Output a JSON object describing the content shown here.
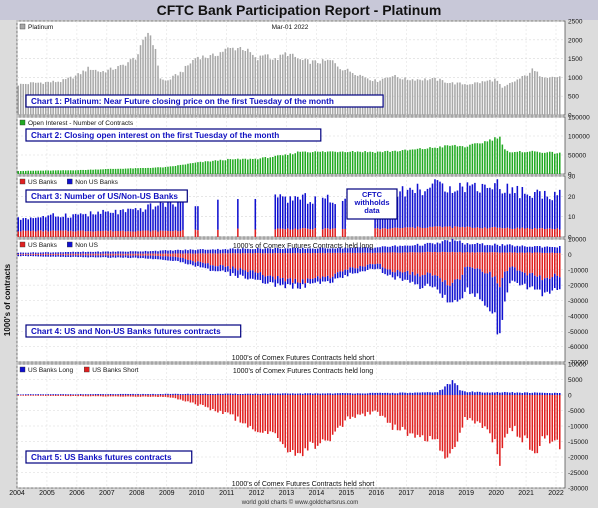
{
  "title": "CFTC Bank Participation Report - Platinum",
  "ylabel": "1000's of contracts",
  "footer": "world gold charts © www.goldchartsrus.com",
  "years": [
    "2004",
    "2005",
    "2006",
    "2007",
    "2008",
    "2009",
    "2010",
    "2011",
    "2012",
    "2013",
    "2014",
    "2015",
    "2016",
    "2017",
    "2018",
    "2019",
    "2020",
    "2021",
    "2022"
  ],
  "colors": {
    "price": "#a8a8a8",
    "oi": "#22aa22",
    "us": "#e02020",
    "nonus": "#1010d0",
    "box_border": "#000080",
    "box_text": "#1010c0"
  },
  "chart_data": [
    {
      "type": "bar",
      "panel": "chart1",
      "box_label": "Chart 1: Platinum: Near Future closing price on the first Tuesday of the month",
      "legend": [
        {
          "name": "Platinum",
          "color": "#a8a8a8"
        }
      ],
      "date_label": "Mar-01  2022",
      "ylim": [
        0,
        2500
      ],
      "yticks": [
        0,
        500,
        1000,
        1500,
        2000,
        2500
      ],
      "series": [
        {
          "name": "Platinum",
          "anchors": [
            [
              2004.0,
              800
            ],
            [
              2004.5,
              850
            ],
            [
              2005.0,
              870
            ],
            [
              2005.5,
              900
            ],
            [
              2006.0,
              1050
            ],
            [
              2006.4,
              1250
            ],
            [
              2006.8,
              1150
            ],
            [
              2007.0,
              1180
            ],
            [
              2007.5,
              1300
            ],
            [
              2008.0,
              1550
            ],
            [
              2008.3,
              2100
            ],
            [
              2008.4,
              2250
            ],
            [
              2008.6,
              1800
            ],
            [
              2008.8,
              950
            ],
            [
              2009.0,
              900
            ],
            [
              2009.5,
              1150
            ],
            [
              2010.0,
              1550
            ],
            [
              2010.5,
              1550
            ],
            [
              2011.0,
              1750
            ],
            [
              2011.5,
              1800
            ],
            [
              2011.8,
              1650
            ],
            [
              2012.0,
              1450
            ],
            [
              2012.3,
              1650
            ],
            [
              2012.6,
              1450
            ],
            [
              2013.0,
              1650
            ],
            [
              2013.5,
              1450
            ],
            [
              2014.0,
              1400
            ],
            [
              2014.5,
              1450
            ],
            [
              2014.8,
              1250
            ],
            [
              2015.0,
              1200
            ],
            [
              2015.5,
              1050
            ],
            [
              2016.0,
              900
            ],
            [
              2016.5,
              1050
            ],
            [
              2017.0,
              950
            ],
            [
              2017.5,
              950
            ],
            [
              2018.0,
              950
            ],
            [
              2018.5,
              850
            ],
            [
              2019.0,
              820
            ],
            [
              2019.5,
              870
            ],
            [
              2020.0,
              950
            ],
            [
              2020.2,
              700
            ],
            [
              2020.5,
              850
            ],
            [
              2021.0,
              1050
            ],
            [
              2021.2,
              1200
            ],
            [
              2021.5,
              1050
            ],
            [
              2022.0,
              1000
            ],
            [
              2022.17,
              1050
            ]
          ]
        }
      ]
    },
    {
      "type": "bar",
      "panel": "chart2",
      "box_label": "Chart 2: Closing open interest on the first Tuesday of the month",
      "legend": [
        {
          "name": "Open Interest - Number of Contracts",
          "color": "#22aa22"
        }
      ],
      "ylim": [
        0,
        150000
      ],
      "yticks": [
        0,
        50000,
        100000,
        150000
      ],
      "series": [
        {
          "name": "Open Interest - Number of Contracts",
          "anchors": [
            [
              2004.0,
              8000
            ],
            [
              2006.0,
              10000
            ],
            [
              2007.0,
              13000
            ],
            [
              2008.0,
              15000
            ],
            [
              2009.0,
              18000
            ],
            [
              2010.0,
              30000
            ],
            [
              2011.0,
              38000
            ],
            [
              2012.0,
              40000
            ],
            [
              2013.0,
              50000
            ],
            [
              2013.5,
              60000
            ],
            [
              2014.0,
              58000
            ],
            [
              2015.0,
              60000
            ],
            [
              2016.0,
              58000
            ],
            [
              2017.0,
              62000
            ],
            [
              2018.0,
              70000
            ],
            [
              2018.5,
              75000
            ],
            [
              2019.0,
              72000
            ],
            [
              2019.5,
              82000
            ],
            [
              2020.0,
              95000
            ],
            [
              2020.1,
              100000
            ],
            [
              2020.3,
              65000
            ],
            [
              2020.5,
              55000
            ],
            [
              2021.0,
              60000
            ],
            [
              2021.5,
              58000
            ],
            [
              2022.0,
              55000
            ],
            [
              2022.17,
              58000
            ]
          ]
        }
      ]
    },
    {
      "type": "bar",
      "panel": "chart3",
      "box_label": "Chart 3: Number of US/Non-US Banks",
      "note": [
        "CFTC",
        "withholds",
        "data"
      ],
      "legend": [
        {
          "name": "US Banks",
          "color": "#e02020"
        },
        {
          "name": "Non US Banks",
          "color": "#1010d0"
        }
      ],
      "ylim": [
        0,
        30
      ],
      "yticks": [
        0,
        10,
        20,
        30
      ],
      "series": [
        {
          "name": "US Banks",
          "anchors": [
            [
              2004.0,
              3
            ],
            [
              2009.0,
              3
            ],
            [
              2012.0,
              4
            ],
            [
              2016.0,
              4
            ],
            [
              2018.0,
              5
            ],
            [
              2022.17,
              4
            ]
          ]
        },
        {
          "name": "Non US Banks",
          "anchors": [
            [
              2004.0,
              6
            ],
            [
              2006.0,
              8
            ],
            [
              2008.0,
              10
            ],
            [
              2009.0,
              14
            ],
            [
              2012.0,
              14
            ],
            [
              2013.0,
              15
            ],
            [
              2015.0,
              14
            ],
            [
              2016.0,
              16
            ],
            [
              2017.0,
              18
            ],
            [
              2018.0,
              20
            ],
            [
              2019.0,
              20
            ],
            [
              2020.0,
              21
            ],
            [
              2021.0,
              17
            ],
            [
              2022.17,
              17
            ]
          ]
        }
      ],
      "gaps": [
        [
          2009.55,
          2009.95
        ],
        [
          2010.05,
          2010.65
        ],
        [
          2010.75,
          2011.3
        ],
        [
          2011.4,
          2011.9
        ],
        [
          2012.0,
          2012.6
        ],
        [
          2014.0,
          2014.2
        ],
        [
          2014.65,
          2014.8
        ],
        [
          2015.0,
          2015.9
        ]
      ]
    },
    {
      "type": "bar",
      "panel": "chart4",
      "box_label": "Chart 4: US and Non-US Banks futures contracts",
      "legend": [
        {
          "name": "US Banks",
          "color": "#e02020"
        },
        {
          "name": "Non US",
          "color": "#1010d0"
        }
      ],
      "top_label": "1000's of Comex Futures Contracts held long",
      "bottom_label": "1000's of Comex Futures Contracts held short",
      "ylim": [
        -70000,
        10000
      ],
      "yticks": [
        -70000,
        -60000,
        -50000,
        -40000,
        -30000,
        -20000,
        -10000,
        0,
        10000
      ],
      "series": [
        {
          "name": "US long",
          "anchors": [
            [
              2004.0,
              300
            ],
            [
              2009.0,
              500
            ],
            [
              2012.0,
              800
            ],
            [
              2016.0,
              1000
            ],
            [
              2018.0,
              1500
            ],
            [
              2022.17,
              1000
            ]
          ]
        },
        {
          "name": "Non US long",
          "anchors": [
            [
              2004.0,
              800
            ],
            [
              2008.0,
              1500
            ],
            [
              2009.0,
              2000
            ],
            [
              2010.0,
              2500
            ],
            [
              2012.0,
              3000
            ],
            [
              2014.0,
              3000
            ],
            [
              2016.0,
              3500
            ],
            [
              2017.0,
              4500
            ],
            [
              2018.0,
              5500
            ],
            [
              2018.5,
              8000
            ],
            [
              2019.0,
              5500
            ],
            [
              2020.0,
              5000
            ],
            [
              2021.0,
              4000
            ],
            [
              2022.17,
              4000
            ]
          ]
        },
        {
          "name": "US short",
          "anchors": [
            [
              2004.0,
              -300
            ],
            [
              2008.5,
              -800
            ],
            [
              2009.5,
              -2000
            ],
            [
              2010.0,
              -5000
            ],
            [
              2011.0,
              -8000
            ],
            [
              2012.0,
              -12000
            ],
            [
              2012.5,
              -14000
            ],
            [
              2013.0,
              -17000
            ],
            [
              2013.5,
              -18000
            ],
            [
              2014.0,
              -16000
            ],
            [
              2014.5,
              -14000
            ],
            [
              2015.0,
              -10000
            ],
            [
              2016.0,
              -6000
            ],
            [
              2016.5,
              -10000
            ],
            [
              2017.0,
              -12000
            ],
            [
              2018.0,
              -14000
            ],
            [
              2018.5,
              -20000
            ],
            [
              2018.8,
              -15000
            ],
            [
              2019.0,
              -8000
            ],
            [
              2019.5,
              -10000
            ],
            [
              2020.0,
              -15000
            ],
            [
              2020.1,
              -24000
            ],
            [
              2020.3,
              -12000
            ],
            [
              2020.5,
              -8000
            ],
            [
              2021.0,
              -12000
            ],
            [
              2021.5,
              -15000
            ],
            [
              2022.0,
              -14000
            ],
            [
              2022.17,
              -13000
            ]
          ]
        },
        {
          "name": "Non US short",
          "anchors": [
            [
              2004.0,
              -800
            ],
            [
              2008.0,
              -1500
            ],
            [
              2009.0,
              -2500
            ],
            [
              2010.0,
              -3000
            ],
            [
              2011.0,
              -4000
            ],
            [
              2012.0,
              -5000
            ],
            [
              2013.0,
              -4000
            ],
            [
              2014.0,
              -3000
            ],
            [
              2015.0,
              -4000
            ],
            [
              2016.0,
              -3000
            ],
            [
              2017.0,
              -5000
            ],
            [
              2017.5,
              -8000
            ],
            [
              2018.0,
              -8000
            ],
            [
              2018.5,
              -12000
            ],
            [
              2019.0,
              -15000
            ],
            [
              2019.5,
              -20000
            ],
            [
              2020.0,
              -25000
            ],
            [
              2020.1,
              -35000
            ],
            [
              2020.3,
              -20000
            ],
            [
              2020.5,
              -10000
            ],
            [
              2021.0,
              -8000
            ],
            [
              2021.5,
              -10000
            ],
            [
              2022.0,
              -9000
            ],
            [
              2022.17,
              -9000
            ]
          ]
        }
      ]
    },
    {
      "type": "bar",
      "panel": "chart5",
      "box_label": "Chart 5: US Banks futures contracts",
      "legend": [
        {
          "name": "US Banks Long",
          "color": "#1010d0"
        },
        {
          "name": "US Banks Short",
          "color": "#e02020"
        }
      ],
      "top_label": "1000's of Comex Futures Contracts held long",
      "bottom_label": "1000's of Comex Futures Contracts held short",
      "ylim": [
        -30000,
        10000
      ],
      "yticks": [
        -30000,
        -25000,
        -20000,
        -15000,
        -10000,
        -5000,
        0,
        5000,
        10000
      ],
      "series": [
        {
          "name": "US Banks Long",
          "anchors": [
            [
              2004.0,
              200
            ],
            [
              2012.0,
              400
            ],
            [
              2016.0,
              600
            ],
            [
              2018.0,
              800
            ],
            [
              2018.6,
              4500
            ],
            [
              2018.8,
              1500
            ],
            [
              2019.0,
              1000
            ],
            [
              2022.17,
              600
            ]
          ]
        },
        {
          "name": "US Banks Short",
          "anchors": [
            [
              2004.0,
              -200
            ],
            [
              2009.0,
              -600
            ],
            [
              2009.5,
              -1500
            ],
            [
              2010.0,
              -3000
            ],
            [
              2011.0,
              -6000
            ],
            [
              2012.0,
              -11000
            ],
            [
              2012.5,
              -13000
            ],
            [
              2013.0,
              -17000
            ],
            [
              2013.3,
              -20000
            ],
            [
              2013.7,
              -16000
            ],
            [
              2014.0,
              -17000
            ],
            [
              2014.5,
              -13000
            ],
            [
              2015.0,
              -8000
            ],
            [
              2016.0,
              -5000
            ],
            [
              2016.5,
              -10000
            ],
            [
              2017.0,
              -12000
            ],
            [
              2017.5,
              -14000
            ],
            [
              2018.0,
              -15000
            ],
            [
              2018.5,
              -21000
            ],
            [
              2018.8,
              -12000
            ],
            [
              2019.0,
              -7000
            ],
            [
              2019.5,
              -10000
            ],
            [
              2020.0,
              -15000
            ],
            [
              2020.1,
              -28000
            ],
            [
              2020.3,
              -12000
            ],
            [
              2020.5,
              -10000
            ],
            [
              2021.0,
              -15000
            ],
            [
              2021.3,
              -19000
            ],
            [
              2021.6,
              -14000
            ],
            [
              2022.0,
              -15000
            ],
            [
              2022.17,
              -19000
            ]
          ]
        }
      ]
    }
  ]
}
